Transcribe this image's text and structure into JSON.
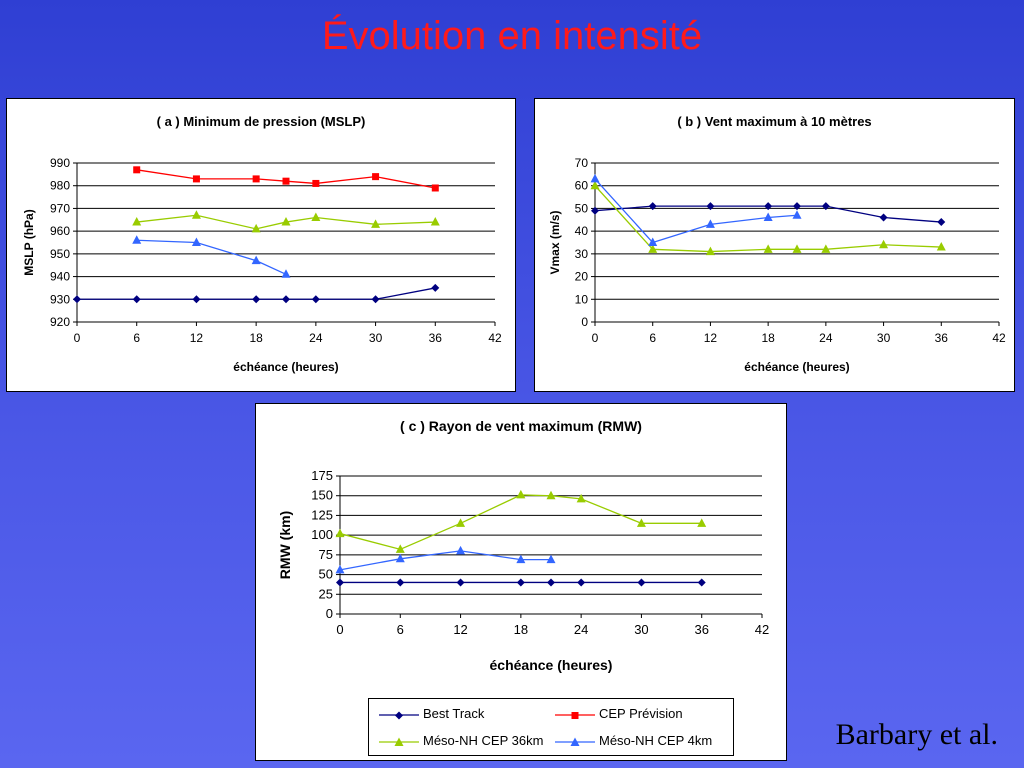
{
  "slide": {
    "title": "Évolution en intensité",
    "attribution": "Barbary et al."
  },
  "legend": [
    {
      "name": "Best Track",
      "color": "#000080",
      "marker": "diamond"
    },
    {
      "name": "CEP Prévision",
      "color": "#ff0000",
      "marker": "square"
    },
    {
      "name": "Méso-NH CEP 36km",
      "color": "#99cc00",
      "marker": "triangle"
    },
    {
      "name": "Méso-NH CEP 4km",
      "color": "#3366ff",
      "marker": "triangle"
    }
  ],
  "chart_data": [
    {
      "type": "line",
      "title": "( a ) Minimum de pression (MSLP)",
      "xlabel": "échéance (heures)",
      "ylabel": "MSLP (hPa)",
      "xlim": [
        0,
        42
      ],
      "ylim": [
        920,
        990
      ],
      "xticks": [
        0,
        6,
        12,
        18,
        24,
        30,
        36,
        42
      ],
      "yticks": [
        920,
        930,
        940,
        950,
        960,
        970,
        980,
        990
      ],
      "grid": "horizontal",
      "series": [
        {
          "name": "Best Track",
          "color": "#000080",
          "marker": "diamond",
          "x": [
            0,
            6,
            12,
            18,
            21,
            24,
            30,
            36
          ],
          "y": [
            930,
            930,
            930,
            930,
            930,
            930,
            930,
            935
          ]
        },
        {
          "name": "CEP Prévision",
          "color": "#ff0000",
          "marker": "square",
          "x": [
            6,
            12,
            18,
            21,
            24,
            30,
            36
          ],
          "y": [
            987,
            983,
            983,
            982,
            981,
            984,
            979
          ]
        },
        {
          "name": "Méso-NH CEP 36km",
          "color": "#99cc00",
          "marker": "triangle",
          "x": [
            6,
            12,
            18,
            21,
            24,
            30,
            36
          ],
          "y": [
            964,
            967,
            961,
            964,
            966,
            963,
            964
          ]
        },
        {
          "name": "Méso-NH CEP 4km",
          "color": "#3366ff",
          "marker": "triangle",
          "x": [
            6,
            12,
            18,
            21
          ],
          "y": [
            956,
            955,
            947,
            941
          ]
        }
      ]
    },
    {
      "type": "line",
      "title": "( b ) Vent maximum à 10 mètres",
      "xlabel": "échéance (heures)",
      "ylabel": "Vmax (m/s)",
      "xlim": [
        0,
        42
      ],
      "ylim": [
        0,
        70
      ],
      "xticks": [
        0,
        6,
        12,
        18,
        24,
        30,
        36,
        42
      ],
      "yticks": [
        0,
        10,
        20,
        30,
        40,
        50,
        60,
        70
      ],
      "grid": "horizontal",
      "series": [
        {
          "name": "Best Track",
          "color": "#000080",
          "marker": "diamond",
          "x": [
            0,
            6,
            12,
            18,
            21,
            24,
            30,
            36
          ],
          "y": [
            49,
            51,
            51,
            51,
            51,
            51,
            46,
            44
          ]
        },
        {
          "name": "Méso-NH CEP 36km",
          "color": "#99cc00",
          "marker": "triangle",
          "x": [
            0,
            6,
            12,
            18,
            21,
            24,
            30,
            36
          ],
          "y": [
            60,
            32,
            31,
            32,
            32,
            32,
            34,
            33
          ]
        },
        {
          "name": "Méso-NH CEP 4km",
          "color": "#3366ff",
          "marker": "triangle",
          "x": [
            0,
            6,
            12,
            18,
            21
          ],
          "y": [
            63,
            35,
            43,
            46,
            47
          ]
        }
      ]
    },
    {
      "type": "line",
      "title": "( c ) Rayon de vent maximum (RMW)",
      "xlabel": "échéance (heures)",
      "ylabel": "RMW (km)",
      "xlim": [
        0,
        42
      ],
      "ylim": [
        0,
        175
      ],
      "xticks": [
        0,
        6,
        12,
        18,
        24,
        30,
        36,
        42
      ],
      "yticks": [
        0,
        25,
        50,
        75,
        100,
        125,
        150,
        175
      ],
      "grid": "horizontal",
      "series": [
        {
          "name": "Best Track",
          "color": "#000080",
          "marker": "diamond",
          "x": [
            0,
            6,
            12,
            18,
            21,
            24,
            30,
            36
          ],
          "y": [
            40,
            40,
            40,
            40,
            40,
            40,
            40,
            40
          ]
        },
        {
          "name": "Méso-NH CEP 36km",
          "color": "#99cc00",
          "marker": "triangle",
          "x": [
            0,
            6,
            12,
            18,
            21,
            24,
            30,
            36
          ],
          "y": [
            102,
            82,
            115,
            151,
            150,
            146,
            115,
            115
          ]
        },
        {
          "name": "Méso-NH CEP 4km",
          "color": "#3366ff",
          "marker": "triangle",
          "x": [
            0,
            6,
            12,
            18,
            21
          ],
          "y": [
            56,
            70,
            80,
            69,
            69
          ]
        }
      ]
    }
  ]
}
